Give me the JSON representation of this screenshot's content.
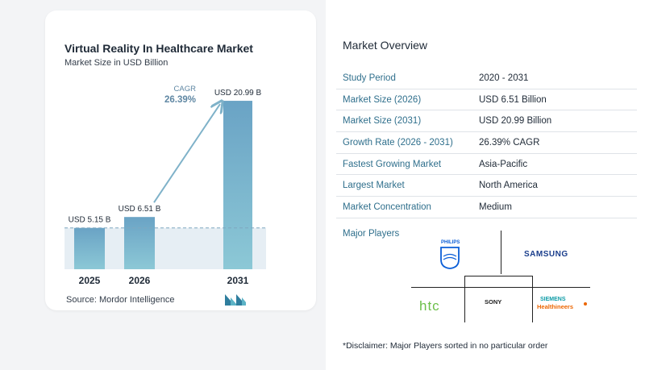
{
  "chart_data": {
    "type": "bar",
    "title": "Virtual Reality In Healthcare Market",
    "subtitle": "Market Size in USD Billion",
    "categories": [
      "2025",
      "2026",
      "2031"
    ],
    "values": [
      5.15,
      6.51,
      20.99
    ],
    "data_labels": [
      "USD 5.15 B",
      "USD 6.51 B",
      "USD 20.99 B"
    ],
    "annotation": {
      "label": "CAGR",
      "value": "26.39%"
    },
    "ylim": [
      0,
      22
    ]
  },
  "source": "Source:  Mordor Intelligence",
  "overview": {
    "title": "Market Overview",
    "rows": [
      {
        "key": "Study Period",
        "value": "2020 - 2031"
      },
      {
        "key": "Market Size (2026)",
        "value": "USD 6.51 Billion"
      },
      {
        "key": "Market Size (2031)",
        "value": "USD 20.99 Billion"
      },
      {
        "key": "Growth Rate (2026 - 2031)",
        "value": "26.39% CAGR"
      },
      {
        "key": "Fastest Growing Market",
        "value": "Asia-Pacific"
      },
      {
        "key": "Largest Market",
        "value": "North America"
      },
      {
        "key": "Market Concentration",
        "value": "Medium"
      }
    ],
    "players_label": "Major Players",
    "players": {
      "philips": "PHILIPS",
      "samsung": "SAMSUNG",
      "htc": "htc",
      "sony": "SONY",
      "siemens_top": "SIEMENS",
      "siemens_bottom": "Healthineers"
    },
    "disclaimer": "*Disclaimer: Major Players sorted in no particular order"
  },
  "colors": {
    "bar_top": "#6aa3c5",
    "bar_bottom": "#8cc8d6",
    "accent": "#2f6f8c",
    "arrow": "#7fb2c9",
    "band": "#e6eef4"
  }
}
